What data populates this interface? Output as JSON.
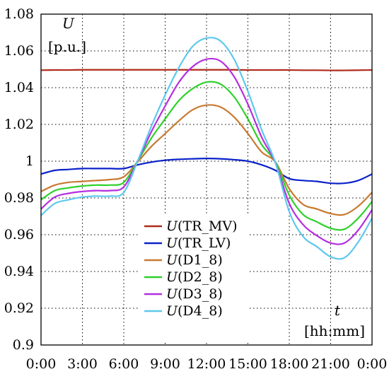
{
  "chart_data": {
    "type": "line",
    "title": "",
    "xlabel": "t",
    "xlabel_unit": "[hh:mm]",
    "ylabel": "U",
    "ylabel_unit": "[p.u.]",
    "x_tick_labels": [
      "0:00",
      "3:00",
      "6:00",
      "9:00",
      "12:00",
      "15:00",
      "18:00",
      "21:00",
      "0:00"
    ],
    "y_tick_labels": [
      "0.9",
      "0.92",
      "0.94",
      "0.96",
      "0.98",
      "1",
      "1.02",
      "1.04",
      "1.06",
      "1.08"
    ],
    "xlim": [
      0,
      24
    ],
    "ylim": [
      0.9,
      1.08
    ],
    "grid": true,
    "legend_position": "lower-right",
    "x": [
      0,
      1,
      2,
      3,
      4,
      5,
      6,
      7,
      8,
      9,
      10,
      11,
      12,
      13,
      14,
      15,
      16,
      17,
      18,
      19,
      20,
      21,
      22,
      23,
      24
    ],
    "series": [
      {
        "name": "TR_MV",
        "color": "#b02a1a",
        "values": [
          1.0495,
          1.0496,
          1.0496,
          1.0497,
          1.0497,
          1.0497,
          1.0497,
          1.0497,
          1.0497,
          1.0497,
          1.0497,
          1.0497,
          1.0497,
          1.0497,
          1.0497,
          1.0496,
          1.0496,
          1.0496,
          1.0496,
          1.0495,
          1.0495,
          1.0494,
          1.0494,
          1.0495,
          1.0496
        ]
      },
      {
        "name": "TR_LV",
        "color": "#0a22c8",
        "values": [
          0.993,
          0.995,
          0.9955,
          0.996,
          0.996,
          0.996,
          0.996,
          0.998,
          0.9995,
          1.0005,
          1.001,
          1.0013,
          1.0015,
          1.0013,
          1.0008,
          1.0,
          0.998,
          0.995,
          0.9905,
          0.9895,
          0.989,
          0.988,
          0.988,
          0.9895,
          0.993
        ]
      },
      {
        "name": "D1_8",
        "color": "#c87a30",
        "values": [
          0.9835,
          0.987,
          0.9885,
          0.989,
          0.9895,
          0.99,
          0.9915,
          0.9995,
          1.008,
          1.015,
          1.022,
          1.028,
          1.0305,
          1.0295,
          1.024,
          1.015,
          1.005,
          0.9995,
          0.985,
          0.9765,
          0.974,
          0.9715,
          0.971,
          0.9755,
          0.983
        ]
      },
      {
        "name": "D2_8",
        "color": "#2ed12a",
        "values": [
          0.979,
          0.984,
          0.9855,
          0.9865,
          0.987,
          0.987,
          0.9885,
          1.0,
          1.0125,
          1.023,
          1.033,
          1.0395,
          1.043,
          1.042,
          1.035,
          1.023,
          1.009,
          0.9995,
          0.9815,
          0.971,
          0.967,
          0.9635,
          0.963,
          0.969,
          0.978
        ]
      },
      {
        "name": "D3_8",
        "color": "#b52fe0",
        "values": [
          0.974,
          0.9805,
          0.9825,
          0.9835,
          0.984,
          0.984,
          0.986,
          1.0,
          1.016,
          1.03,
          1.043,
          1.0515,
          1.0555,
          1.0545,
          1.046,
          1.031,
          1.013,
          0.999,
          0.977,
          0.9655,
          0.9595,
          0.9555,
          0.9555,
          0.9625,
          0.9735
        ]
      },
      {
        "name": "D4_8",
        "color": "#5fc8ee",
        "values": [
          0.9705,
          0.977,
          0.979,
          0.9805,
          0.981,
          0.981,
          0.983,
          1.0,
          1.019,
          1.036,
          1.051,
          1.0625,
          1.067,
          1.0655,
          1.0555,
          1.038,
          1.017,
          0.999,
          0.9725,
          0.959,
          0.9535,
          0.948,
          0.9475,
          0.956,
          0.969
        ]
      }
    ],
    "legend_prefix": "U"
  }
}
